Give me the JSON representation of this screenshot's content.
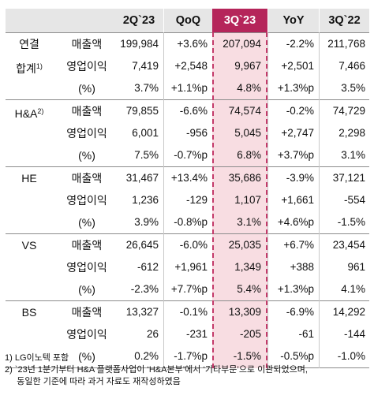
{
  "header": {
    "cols": [
      "2Q`23",
      "QoQ",
      "3Q`23",
      "YoY",
      "3Q`22"
    ]
  },
  "groups": [
    {
      "label1": "연결",
      "label2": "합계",
      "label2_sup": "1)",
      "rows": [
        {
          "label": "매출액",
          "vals": [
            "199,984",
            "+3.6%",
            "207,094",
            "-2.2%",
            "211,768"
          ]
        },
        {
          "label": "영업이익",
          "vals": [
            "7,419",
            "+2,548",
            "9,967",
            "+2,501",
            "7,466"
          ]
        },
        {
          "label": "(%)",
          "vals": [
            "3.7%",
            "+1.1%p",
            "4.8%",
            "+1.3%p",
            "3.5%"
          ]
        }
      ]
    },
    {
      "label1": "H&A",
      "label1_sup": "2)",
      "rows": [
        {
          "label": "매출액",
          "vals": [
            "79,855",
            "-6.6%",
            "74,574",
            "-0.2%",
            "74,729"
          ]
        },
        {
          "label": "영업이익",
          "vals": [
            "6,001",
            "-956",
            "5,045",
            "+2,747",
            "2,298"
          ]
        },
        {
          "label": "(%)",
          "vals": [
            "7.5%",
            "-0.7%p",
            "6.8%",
            "+3.7%p",
            "3.1%"
          ]
        }
      ]
    },
    {
      "label1": "HE",
      "rows": [
        {
          "label": "매출액",
          "vals": [
            "31,467",
            "+13.4%",
            "35,686",
            "-3.9%",
            "37,121"
          ]
        },
        {
          "label": "영업이익",
          "vals": [
            "1,236",
            "-129",
            "1,107",
            "+1,661",
            "-554"
          ]
        },
        {
          "label": "(%)",
          "vals": [
            "3.9%",
            "-0.8%p",
            "3.1%",
            "+4.6%p",
            "-1.5%"
          ]
        }
      ]
    },
    {
      "label1": "VS",
      "rows": [
        {
          "label": "매출액",
          "vals": [
            "26,645",
            "-6.0%",
            "25,035",
            "+6.7%",
            "23,454"
          ]
        },
        {
          "label": "영업이익",
          "vals": [
            "-612",
            "+1,961",
            "1,349",
            "+388",
            "961"
          ]
        },
        {
          "label": "(%)",
          "vals": [
            "-2.3%",
            "+7.7%p",
            "5.4%",
            "+1.3%p",
            "4.1%"
          ]
        }
      ]
    },
    {
      "label1": "BS",
      "rows": [
        {
          "label": "매출액",
          "vals": [
            "13,327",
            "-0.1%",
            "13,309",
            "-6.9%",
            "14,292"
          ]
        },
        {
          "label": "영업이익",
          "vals": [
            "26",
            "-231",
            "-205",
            "-61",
            "-144"
          ]
        },
        {
          "label": "(%)",
          "vals": [
            "0.2%",
            "-1.7%p",
            "-1.5%",
            "-0.5%p",
            "-1.0%"
          ]
        }
      ]
    }
  ],
  "notes": [
    "1) LG이노텍 포함",
    "2) `23년 1분기부터 H&A 플랫폼사업이 ‘H&A본부’에서 ‘기타부문’으로 이관되었으며,",
    "     동일한 기준에 따라 과거 자료도 재작성하였음"
  ],
  "colors": {
    "highlight_header": "#b5255a",
    "highlight_column": "#f8dde2",
    "header_bg": "#e6e6e6"
  }
}
